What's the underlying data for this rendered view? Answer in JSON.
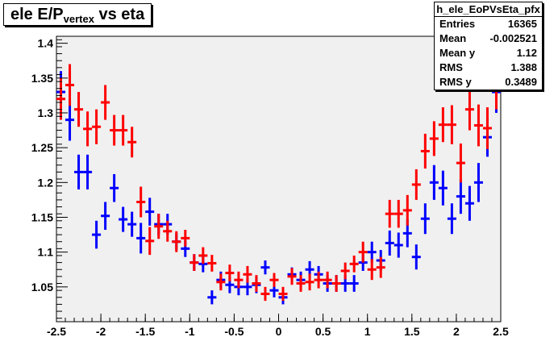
{
  "title": {
    "main": "ele E/P",
    "subscript": "vertex",
    "suffix": " vs eta"
  },
  "stats": {
    "name": "h_ele_EoPVsEta_pfx",
    "rows": [
      {
        "label": "Entries",
        "value": "16365"
      },
      {
        "label": "Mean",
        "value": "-0.002521"
      },
      {
        "label": "Mean y",
        "value": "1.12"
      },
      {
        "label": "RMS",
        "value": "1.388"
      },
      {
        "label": "RMS y",
        "value": "0.3489"
      }
    ]
  },
  "colors": {
    "frame_bg": "#f0f0f0",
    "series_blue": "#0000ff",
    "series_red": "#ff0000"
  },
  "chart_data": {
    "type": "scatter",
    "title": "ele E/P vertex vs eta",
    "xlim": [
      -2.5,
      2.5
    ],
    "ylim": [
      1.0,
      1.41
    ],
    "xticks": [
      -2.5,
      -2,
      -1.5,
      -1,
      -0.5,
      0,
      0.5,
      1,
      1.5,
      2,
      2.5
    ],
    "xtick_labels": [
      "-2.5",
      "-2",
      "-1.5",
      "-1",
      "-0.5",
      "0",
      "0.5",
      "1",
      "1.5",
      "2",
      "2.5"
    ],
    "yticks": [
      1.05,
      1.1,
      1.15,
      1.2,
      1.25,
      1.3,
      1.35,
      1.4
    ],
    "ytick_labels": [
      "1.05",
      "1.1",
      "1.15",
      "1.2",
      "1.25",
      "1.3",
      "1.35",
      "1.4"
    ],
    "xerr": 0.05,
    "grid": false,
    "series": [
      {
        "color": "#0000ff",
        "points": [
          {
            "x": -2.45,
            "y": 1.33,
            "err": 0.03
          },
          {
            "x": -2.35,
            "y": 1.29,
            "err": 0.03
          },
          {
            "x": -2.25,
            "y": 1.215,
            "err": 0.025
          },
          {
            "x": -2.15,
            "y": 1.215,
            "err": 0.025
          },
          {
            "x": -2.05,
            "y": 1.125,
            "err": 0.02
          },
          {
            "x": -1.95,
            "y": 1.152,
            "err": 0.02
          },
          {
            "x": -1.85,
            "y": 1.192,
            "err": 0.02
          },
          {
            "x": -1.75,
            "y": 1.147,
            "err": 0.018
          },
          {
            "x": -1.65,
            "y": 1.14,
            "err": 0.018
          },
          {
            "x": -1.55,
            "y": 1.12,
            "err": 0.022
          },
          {
            "x": -1.45,
            "y": 1.158,
            "err": 0.02
          },
          {
            "x": -1.35,
            "y": 1.14,
            "err": 0.015
          },
          {
            "x": -1.25,
            "y": 1.14,
            "err": 0.015
          },
          {
            "x": -1.15,
            "y": 1.115,
            "err": 0.012
          },
          {
            "x": -1.05,
            "y": 1.105,
            "err": 0.012
          },
          {
            "x": -0.95,
            "y": 1.085,
            "err": 0.012
          },
          {
            "x": -0.85,
            "y": 1.083,
            "err": 0.012
          },
          {
            "x": -0.75,
            "y": 1.035,
            "err": 0.01
          },
          {
            "x": -0.65,
            "y": 1.06,
            "err": 0.012
          },
          {
            "x": -0.55,
            "y": 1.053,
            "err": 0.012
          },
          {
            "x": -0.45,
            "y": 1.05,
            "err": 0.012
          },
          {
            "x": -0.35,
            "y": 1.05,
            "err": 0.012
          },
          {
            "x": -0.25,
            "y": 1.053,
            "err": 0.012
          },
          {
            "x": -0.15,
            "y": 1.078,
            "err": 0.01
          },
          {
            "x": -0.05,
            "y": 1.045,
            "err": 0.01
          },
          {
            "x": 0.05,
            "y": 1.035,
            "err": 0.01
          },
          {
            "x": 0.15,
            "y": 1.068,
            "err": 0.01
          },
          {
            "x": 0.25,
            "y": 1.06,
            "err": 0.012
          },
          {
            "x": 0.35,
            "y": 1.075,
            "err": 0.012
          },
          {
            "x": 0.45,
            "y": 1.068,
            "err": 0.012
          },
          {
            "x": 0.55,
            "y": 1.055,
            "err": 0.012
          },
          {
            "x": 0.65,
            "y": 1.055,
            "err": 0.012
          },
          {
            "x": 0.75,
            "y": 1.055,
            "err": 0.012
          },
          {
            "x": 0.85,
            "y": 1.055,
            "err": 0.012
          },
          {
            "x": 0.95,
            "y": 1.085,
            "err": 0.012
          },
          {
            "x": 1.05,
            "y": 1.1,
            "err": 0.015
          },
          {
            "x": 1.15,
            "y": 1.088,
            "err": 0.015
          },
          {
            "x": 1.25,
            "y": 1.113,
            "err": 0.018
          },
          {
            "x": 1.35,
            "y": 1.11,
            "err": 0.018
          },
          {
            "x": 1.45,
            "y": 1.127,
            "err": 0.02
          },
          {
            "x": 1.55,
            "y": 1.093,
            "err": 0.018
          },
          {
            "x": 1.65,
            "y": 1.148,
            "err": 0.022
          },
          {
            "x": 1.75,
            "y": 1.2,
            "err": 0.025
          },
          {
            "x": 1.85,
            "y": 1.192,
            "err": 0.025
          },
          {
            "x": 1.95,
            "y": 1.148,
            "err": 0.022
          },
          {
            "x": 2.05,
            "y": 1.18,
            "err": 0.025
          },
          {
            "x": 2.15,
            "y": 1.17,
            "err": 0.025
          },
          {
            "x": 2.25,
            "y": 1.2,
            "err": 0.028
          },
          {
            "x": 2.35,
            "y": 1.265,
            "err": 0.028
          },
          {
            "x": 2.45,
            "y": 1.33,
            "err": 0.03
          }
        ]
      },
      {
        "color": "#ff0000",
        "points": [
          {
            "x": -2.45,
            "y": 1.32,
            "err": 0.03
          },
          {
            "x": -2.35,
            "y": 1.34,
            "err": 0.03
          },
          {
            "x": -2.25,
            "y": 1.305,
            "err": 0.025
          },
          {
            "x": -2.15,
            "y": 1.277,
            "err": 0.025
          },
          {
            "x": -2.05,
            "y": 1.28,
            "err": 0.025
          },
          {
            "x": -1.95,
            "y": 1.315,
            "err": 0.025
          },
          {
            "x": -1.85,
            "y": 1.275,
            "err": 0.022
          },
          {
            "x": -1.75,
            "y": 1.275,
            "err": 0.022
          },
          {
            "x": -1.65,
            "y": 1.258,
            "err": 0.022
          },
          {
            "x": -1.55,
            "y": 1.172,
            "err": 0.022
          },
          {
            "x": -1.45,
            "y": 1.116,
            "err": 0.02
          },
          {
            "x": -1.35,
            "y": 1.137,
            "err": 0.018
          },
          {
            "x": -1.25,
            "y": 1.13,
            "err": 0.015
          },
          {
            "x": -1.15,
            "y": 1.115,
            "err": 0.015
          },
          {
            "x": -1.05,
            "y": 1.12,
            "err": 0.012
          },
          {
            "x": -0.95,
            "y": 1.085,
            "err": 0.012
          },
          {
            "x": -0.85,
            "y": 1.095,
            "err": 0.012
          },
          {
            "x": -0.75,
            "y": 1.084,
            "err": 0.012
          },
          {
            "x": -0.65,
            "y": 1.057,
            "err": 0.012
          },
          {
            "x": -0.55,
            "y": 1.07,
            "err": 0.012
          },
          {
            "x": -0.45,
            "y": 1.06,
            "err": 0.012
          },
          {
            "x": -0.35,
            "y": 1.068,
            "err": 0.012
          },
          {
            "x": -0.25,
            "y": 1.055,
            "err": 0.012
          },
          {
            "x": -0.15,
            "y": 1.04,
            "err": 0.01
          },
          {
            "x": -0.05,
            "y": 1.06,
            "err": 0.01
          },
          {
            "x": 0.05,
            "y": 1.04,
            "err": 0.01
          },
          {
            "x": 0.15,
            "y": 1.065,
            "err": 0.012
          },
          {
            "x": 0.25,
            "y": 1.055,
            "err": 0.012
          },
          {
            "x": 0.35,
            "y": 1.057,
            "err": 0.012
          },
          {
            "x": 0.45,
            "y": 1.06,
            "err": 0.012
          },
          {
            "x": 0.55,
            "y": 1.06,
            "err": 0.012
          },
          {
            "x": 0.65,
            "y": 1.055,
            "err": 0.012
          },
          {
            "x": 0.75,
            "y": 1.073,
            "err": 0.012
          },
          {
            "x": 0.85,
            "y": 1.083,
            "err": 0.012
          },
          {
            "x": 0.95,
            "y": 1.1,
            "err": 0.015
          },
          {
            "x": 1.05,
            "y": 1.075,
            "err": 0.015
          },
          {
            "x": 1.15,
            "y": 1.078,
            "err": 0.015
          },
          {
            "x": 1.25,
            "y": 1.155,
            "err": 0.02
          },
          {
            "x": 1.35,
            "y": 1.155,
            "err": 0.02
          },
          {
            "x": 1.45,
            "y": 1.16,
            "err": 0.022
          },
          {
            "x": 1.55,
            "y": 1.197,
            "err": 0.022
          },
          {
            "x": 1.65,
            "y": 1.245,
            "err": 0.025
          },
          {
            "x": 1.75,
            "y": 1.263,
            "err": 0.025
          },
          {
            "x": 1.85,
            "y": 1.283,
            "err": 0.025
          },
          {
            "x": 1.95,
            "y": 1.283,
            "err": 0.028
          },
          {
            "x": 2.05,
            "y": 1.228,
            "err": 0.028
          },
          {
            "x": 2.15,
            "y": 1.305,
            "err": 0.03
          },
          {
            "x": 2.25,
            "y": 1.282,
            "err": 0.03
          },
          {
            "x": 2.35,
            "y": 1.278,
            "err": 0.03
          },
          {
            "x": 2.45,
            "y": 1.34,
            "err": 0.035
          }
        ]
      }
    ]
  }
}
